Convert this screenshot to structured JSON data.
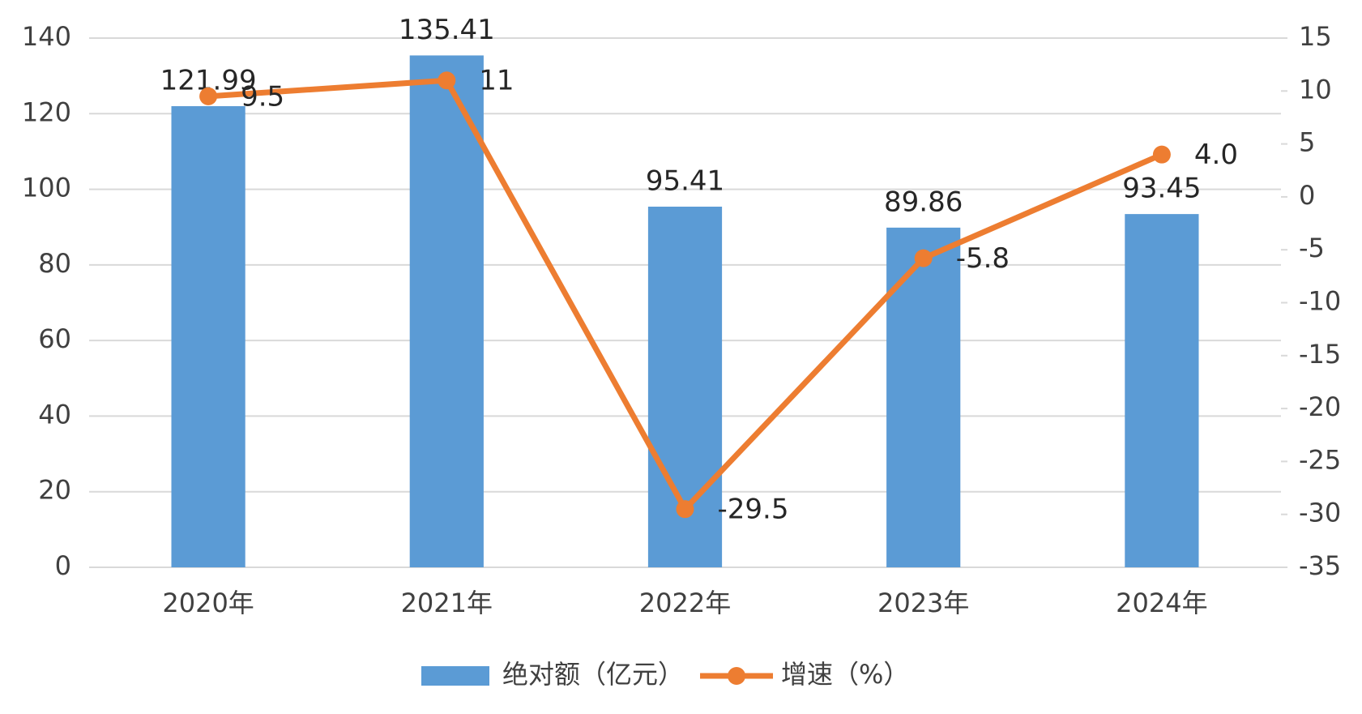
{
  "chart_data": {
    "type": "bar",
    "categories": [
      "2020年",
      "2021年",
      "2022年",
      "2023年",
      "2024年"
    ],
    "series": [
      {
        "name": "绝对额（亿元）",
        "type": "bar",
        "color": "#5b9bd5",
        "values": [
          121.99,
          135.41,
          95.41,
          89.86,
          93.45
        ]
      },
      {
        "name": "增速（%）",
        "type": "line",
        "axis": "y2",
        "color": "#ed7d31",
        "values": [
          9.5,
          11,
          -29.5,
          -5.8,
          4
        ],
        "value_labels": [
          "9.5",
          "11",
          "-29.5",
          "-5.8",
          "4.0"
        ]
      }
    ],
    "ylim": [
      0,
      140
    ],
    "yticks": [
      0,
      20,
      40,
      60,
      80,
      100,
      120,
      140
    ],
    "y2lim": [
      -35,
      15
    ],
    "y2ticks": [
      -35,
      -30,
      -25,
      -20,
      -15,
      -10,
      -5,
      0,
      5,
      10,
      15
    ],
    "grid": true,
    "legend": "bottom"
  }
}
